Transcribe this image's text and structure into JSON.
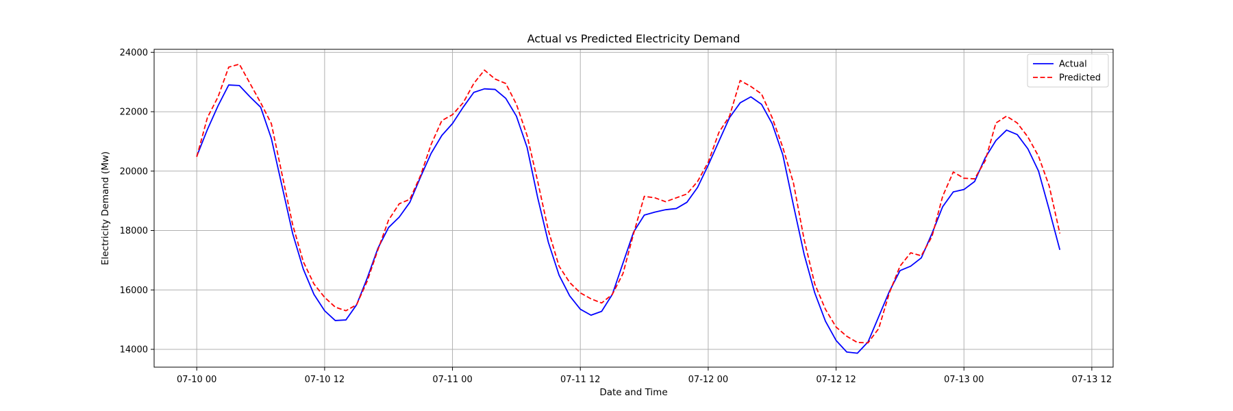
{
  "chart_data": {
    "type": "line",
    "title": "Actual vs Predicted Electricity Demand",
    "xlabel": "Date and Time",
    "ylabel": "Electricity Demand (Mw)",
    "x_start": "2024-07-10 00:00",
    "x_ticks": [
      {
        "x": "2024-07-10 00:00",
        "label": "07-10 00"
      },
      {
        "x": "2024-07-10 12:00",
        "label": "07-10 12"
      },
      {
        "x": "2024-07-11 00:00",
        "label": "07-11 00"
      },
      {
        "x": "2024-07-11 12:00",
        "label": "07-11 12"
      },
      {
        "x": "2024-07-12 00:00",
        "label": "07-12 00"
      },
      {
        "x": "2024-07-12 12:00",
        "label": "07-12 12"
      },
      {
        "x": "2024-07-13 00:00",
        "label": "07-13 00"
      },
      {
        "x": "2024-07-13 12:00",
        "label": "07-13 12"
      }
    ],
    "xlim": [
      "2024-07-09 20:00",
      "2024-07-13 14:00"
    ],
    "ylim": [
      13400,
      24100
    ],
    "y_ticks": [
      14000,
      16000,
      18000,
      20000,
      22000,
      24000
    ],
    "grid": true,
    "legend_position": "top-right",
    "series": [
      {
        "name": "Actual",
        "color": "#0000ff",
        "dash": "solid",
        "values": [
          20500,
          21400,
          22200,
          22900,
          22880,
          22500,
          22150,
          21100,
          19500,
          17900,
          16700,
          15850,
          15300,
          14970,
          14990,
          15500,
          16400,
          17400,
          18100,
          18450,
          18950,
          19800,
          20600,
          21200,
          21600,
          22150,
          22650,
          22770,
          22750,
          22450,
          21850,
          20800,
          19100,
          17600,
          16500,
          15800,
          15350,
          15150,
          15280,
          15850,
          16900,
          17950,
          18520,
          18620,
          18700,
          18740,
          18950,
          19450,
          20200,
          21000,
          21800,
          22300,
          22500,
          22250,
          21600,
          20550,
          18850,
          17200,
          15900,
          14950,
          14300,
          13910,
          13870,
          14250,
          15100,
          15950,
          16650,
          16800,
          17080,
          17900,
          18800,
          19300,
          19380,
          19650,
          20450,
          21030,
          21380,
          21230,
          20750,
          20000,
          18700,
          17350
        ]
      },
      {
        "name": "Predicted",
        "color": "#ff0000",
        "dash": "dashed",
        "values": [
          20480,
          21800,
          22500,
          23500,
          23600,
          22950,
          22300,
          21600,
          19900,
          18200,
          16950,
          16200,
          15750,
          15420,
          15300,
          15500,
          16300,
          17350,
          18350,
          18900,
          19050,
          19850,
          20900,
          21700,
          21900,
          22300,
          22950,
          23400,
          23100,
          22950,
          22250,
          21200,
          19650,
          18000,
          16800,
          16250,
          15900,
          15700,
          15560,
          15850,
          16550,
          17900,
          19150,
          19100,
          18970,
          19100,
          19230,
          19650,
          20300,
          21300,
          21850,
          23050,
          22850,
          22600,
          21800,
          20800,
          19600,
          17700,
          16200,
          15350,
          14750,
          14440,
          14230,
          14220,
          14700,
          15900,
          16800,
          17250,
          17150,
          17800,
          19150,
          19970,
          19760,
          19740,
          20350,
          21620,
          21850,
          21620,
          21150,
          20500,
          19500,
          17900
        ]
      }
    ]
  }
}
